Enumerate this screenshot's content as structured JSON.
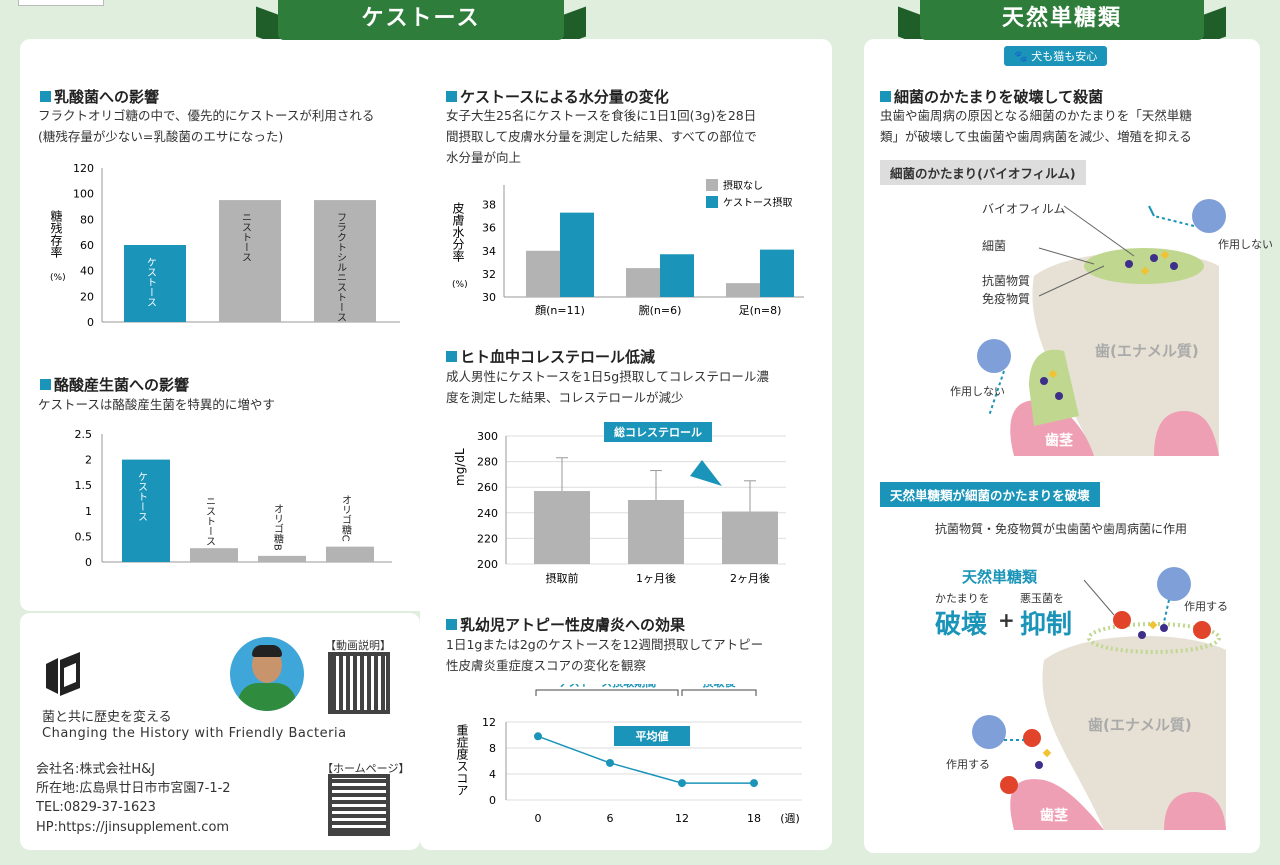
{
  "top_tag": "",
  "left_ribbon": "ケストース",
  "right_ribbon": "天然単糖類",
  "dog_badge": "犬も猫も安心",
  "s1": {
    "title": "乳酸菌への影響",
    "desc1": "フラクトオリゴ糖の中で、優先的にケストースが利用される",
    "desc2": "(糖残存量が少ない=乳酸菌のエサになった)",
    "ylabel": "糖残存率",
    "yunit": "(%)"
  },
  "s2": {
    "title": "ケストースによる水分量の変化",
    "desc1": "女子大生25名にケストースを食後に1日1回(3g)を28日",
    "desc2": "間摂取して皮膚水分量を測定した結果、すべての部位で",
    "desc3": "水分量が向上",
    "ylabel": "皮膚水分率",
    "yunit": "(%)"
  },
  "s3": {
    "title": "酪酸産生菌への影響",
    "desc1": "ケストースは酪酸産生菌を特異的に増やす"
  },
  "s4": {
    "title": "ヒト血中コレステロール低減",
    "desc1": "成人男性にケストースを1日5g摂取してコレステロール濃",
    "desc2": "度を測定した結果、コレステロールが減少",
    "ylabel": "mg/dL",
    "badge": "総コレステロール"
  },
  "s5": {
    "title": "乳幼児アトピー性皮膚炎への効果",
    "desc1": "1日1gまたは2gのケストースを12週間摂取してアトピー",
    "desc2": "性皮膚炎重症度スコアの変化を観察",
    "ylabel": "重症度スコア",
    "period1": "ケストース摂取期間",
    "period2": "摂取後",
    "badge": "平均値",
    "unit": "(週)"
  },
  "company": {
    "video_label": "【動画説明】",
    "home_label": "【ホームページ】",
    "slogan_jp": "菌と共に歴史を変える",
    "slogan_en": "Changing the History with Friendly Bacteria",
    "name": "会社名:株式会社H&J",
    "address": "所在地:広島県廿日市市宮園7-1-2",
    "tel": "TEL:0829-37-1623",
    "hp": "HP:https://jinsupplement.com"
  },
  "right": {
    "title": "細菌のかたまりを破壊して殺菌",
    "desc1": "虫歯や歯周病の原因となる細菌のかたまりを「天然単糖",
    "desc2": "類」が破壊して虫歯菌や歯周病菌を減少、増殖を抑える",
    "label1": "細菌のかたまり(バイオフィルム)",
    "biofilm": "バイオフィルム",
    "bacteria": "細菌",
    "antibody1": "抗菌物質",
    "antibody2": "免疫物質",
    "no_effect1": "作用しない",
    "no_effect2": "作用しない",
    "tooth1": "歯(エナメル質)",
    "gum1": "歯茎",
    "label2": "天然単糖類が細菌のかたまりを破壊",
    "act_desc": "抗菌物質・免疫物質が虫歯菌や歯周病菌に作用",
    "natural": "天然単糖類",
    "mass": "かたまりを",
    "bad": "悪玉菌を",
    "destroy": "破壊",
    "plus": "+",
    "suppress": "抑制",
    "effect1": "作用する",
    "effect2": "作用する",
    "tooth2": "歯(エナメル質)",
    "gum2": "歯茎"
  },
  "colors": {
    "accent": "#1a94b8",
    "grey": "#b3b3b3",
    "ribbon": "#2e7d3a"
  },
  "chart_data": [
    {
      "type": "bar",
      "title": "乳酸菌への影響",
      "ylabel": "糖残存率(%)",
      "categories": [
        "ケストース",
        "ニストース",
        "フラクトシルニストース"
      ],
      "values": [
        60,
        95,
        95
      ],
      "ylim": [
        0,
        120
      ],
      "yticks": [
        0,
        20,
        40,
        60,
        80,
        100,
        120
      ]
    },
    {
      "type": "bar",
      "title": "ケストースによる水分量の変化",
      "ylabel": "皮膚水分率(%)",
      "categories": [
        "顔(n=11)",
        "腕(n=6)",
        "足(n=8)"
      ],
      "series": [
        {
          "name": "摂取なし",
          "values": [
            34.0,
            32.5,
            31.2
          ]
        },
        {
          "name": "ケストース摂取",
          "values": [
            37.3,
            33.7,
            34.1
          ]
        }
      ],
      "ylim": [
        30,
        39
      ],
      "yticks": [
        30,
        32,
        34,
        36,
        38
      ]
    },
    {
      "type": "bar",
      "title": "酪酸産生菌への影響",
      "categories": [
        "ケストース",
        "ニストース",
        "オリゴ糖B",
        "オリゴ糖C"
      ],
      "values": [
        2.0,
        0.27,
        0.12,
        0.3
      ],
      "ylim": [
        0,
        2.5
      ],
      "yticks": [
        "0",
        "0.5",
        "1",
        "1.5",
        "2",
        "2.5"
      ]
    },
    {
      "type": "bar",
      "title": "ヒト血中コレステロール低減",
      "ylabel": "mg/dL",
      "categories": [
        "摂取前",
        "1ヶ月後",
        "2ヶ月後"
      ],
      "values": [
        257,
        250,
        241
      ],
      "error_top": [
        283,
        273,
        265
      ],
      "ylim": [
        200,
        300
      ],
      "yticks": [
        200,
        220,
        240,
        260,
        280,
        300
      ]
    },
    {
      "type": "line",
      "title": "乳幼児アトピー性皮膚炎への効果",
      "ylabel": "重症度スコア",
      "x": [
        0,
        6,
        12,
        18
      ],
      "values": [
        9.8,
        5.7,
        2.6,
        2.6
      ],
      "ylim": [
        0,
        12
      ],
      "yticks": [
        0,
        4,
        8,
        12
      ]
    }
  ]
}
